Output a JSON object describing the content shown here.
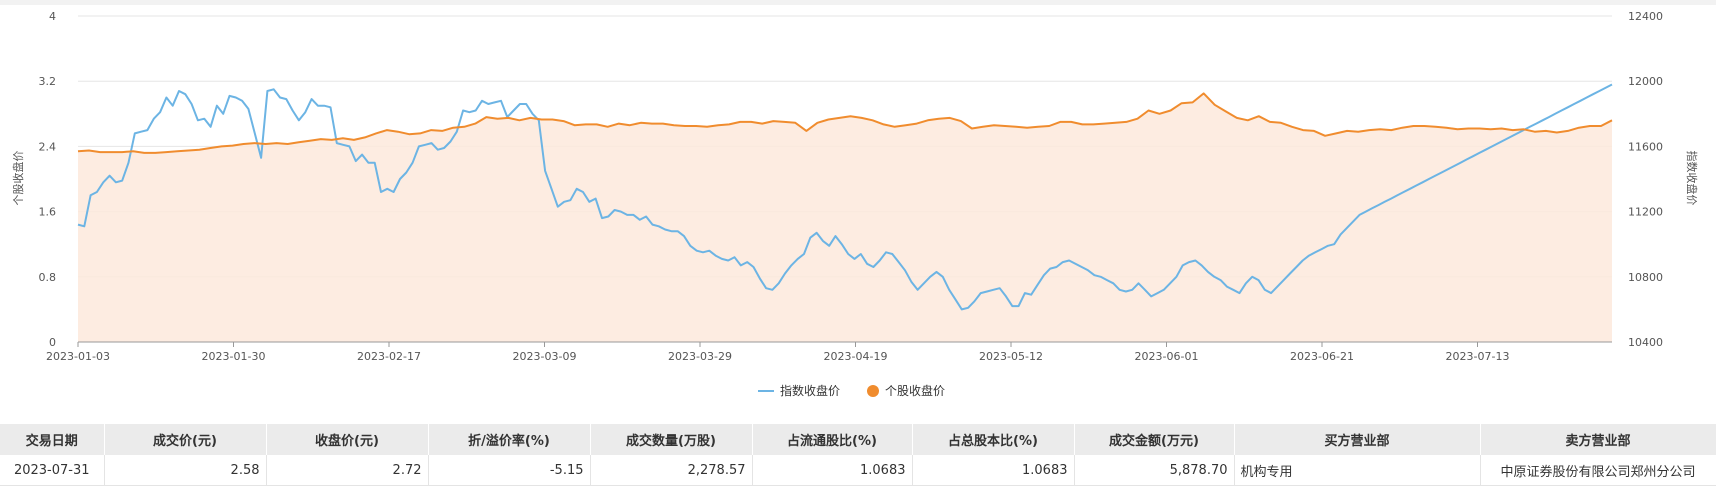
{
  "chart_data": {
    "type": "line",
    "legend_placement": "bottom-center",
    "grid": true,
    "x_ticks": [
      "2023-01-03",
      "2023-01-30",
      "2023-02-17",
      "2023-03-09",
      "2023-03-29",
      "2023-04-19",
      "2023-05-12",
      "2023-06-01",
      "2023-06-21",
      "2023-07-13"
    ],
    "y_left": {
      "label": "个股收盘价",
      "ticks": [
        "0",
        "0.8",
        "1.6",
        "2.4",
        "3.2",
        "4"
      ],
      "range": [
        0,
        4
      ]
    },
    "y_right": {
      "label": "指数收盘价",
      "ticks": [
        "10400",
        "10800",
        "11200",
        "11600",
        "12000",
        "12400"
      ],
      "range": [
        10400,
        12400
      ]
    },
    "series": [
      {
        "name": "指数收盘价",
        "axis": "right",
        "color": "#6cb4e4",
        "values": [
          11120,
          11110,
          11300,
          11320,
          11380,
          11420,
          11380,
          11390,
          11500,
          11680,
          11690,
          11700,
          11770,
          11810,
          11900,
          11850,
          11940,
          11920,
          11860,
          11760,
          11770,
          11720,
          11850,
          11800,
          11910,
          11900,
          11880,
          11830,
          11680,
          11530,
          11940,
          11950,
          11900,
          11890,
          11820,
          11760,
          11810,
          11890,
          11850,
          11850,
          11840,
          11620,
          11610,
          11600,
          11510,
          11550,
          11500,
          11500,
          11320,
          11340,
          11320,
          11400,
          11440,
          11500,
          11600,
          11610,
          11620,
          11580,
          11590,
          11630,
          11690,
          11820,
          11810,
          11820,
          11880,
          11860,
          11870,
          11880,
          11780,
          11820,
          11860,
          11860,
          11800,
          11760,
          11450,
          11340,
          11230,
          11260,
          11270,
          11340,
          11320,
          11260,
          11280,
          11160,
          11170,
          11210,
          11200,
          11180,
          11180,
          11150,
          11170,
          11120,
          11110,
          11090,
          11080,
          11080,
          11050,
          10990,
          10960,
          10950,
          10960,
          10930,
          10910,
          10900,
          10920,
          10870,
          10890,
          10860,
          10790,
          10730,
          10720,
          10760,
          10820,
          10870,
          10910,
          10940,
          11040,
          11070,
          11020,
          10990,
          11050,
          11000,
          10940,
          10910,
          10940,
          10880,
          10860,
          10900,
          10950,
          10940,
          10890,
          10840,
          10770,
          10720,
          10760,
          10800,
          10830,
          10800,
          10720,
          10660,
          10600,
          10610,
          10650,
          10700,
          10710,
          10720,
          10730,
          10680,
          10620,
          10620,
          10700,
          10690,
          10750,
          10810,
          10850,
          10860,
          10890,
          10900,
          10880,
          10860,
          10840,
          10810,
          10800,
          10780,
          10760,
          10720,
          10710,
          10720,
          10760,
          10720,
          10680,
          10700,
          10720,
          10760,
          10800,
          10870,
          10890,
          10900,
          10870,
          10830,
          10800,
          10780,
          10740,
          10720,
          10700,
          10760,
          10800,
          10780,
          10720,
          10700,
          10740,
          10780,
          10820,
          10860,
          10900,
          10930,
          10950,
          10970,
          10990,
          11000,
          11060,
          11100,
          11140,
          11180,
          11200,
          11220,
          11240,
          11260,
          11280,
          11300,
          11320,
          11340,
          11360,
          11380,
          11400,
          11420,
          11440,
          11460,
          11480,
          11500,
          11520,
          11540,
          11560,
          11580,
          11600,
          11620,
          11640,
          11660,
          11680,
          11700,
          11720,
          11740,
          11760,
          11780,
          11800,
          11820,
          11840,
          11860,
          11880,
          11900,
          11920,
          11940,
          11960,
          11980
        ]
      },
      {
        "name": "个股收盘价",
        "axis": "left",
        "color": "#f08c2e",
        "values": [
          2.34,
          2.35,
          2.33,
          2.33,
          2.33,
          2.34,
          2.32,
          2.32,
          2.33,
          2.34,
          2.35,
          2.36,
          2.38,
          2.4,
          2.41,
          2.43,
          2.44,
          2.43,
          2.44,
          2.43,
          2.45,
          2.47,
          2.49,
          2.48,
          2.5,
          2.48,
          2.51,
          2.56,
          2.6,
          2.58,
          2.55,
          2.56,
          2.6,
          2.59,
          2.63,
          2.64,
          2.68,
          2.76,
          2.74,
          2.75,
          2.72,
          2.75,
          2.73,
          2.73,
          2.71,
          2.66,
          2.67,
          2.67,
          2.64,
          2.68,
          2.66,
          2.69,
          2.68,
          2.68,
          2.66,
          2.65,
          2.65,
          2.64,
          2.66,
          2.67,
          2.7,
          2.7,
          2.68,
          2.71,
          2.7,
          2.69,
          2.59,
          2.69,
          2.73,
          2.75,
          2.77,
          2.75,
          2.72,
          2.67,
          2.64,
          2.66,
          2.68,
          2.72,
          2.74,
          2.75,
          2.71,
          2.62,
          2.64,
          2.66,
          2.65,
          2.64,
          2.63,
          2.64,
          2.65,
          2.7,
          2.7,
          2.67,
          2.67,
          2.68,
          2.69,
          2.7,
          2.74,
          2.84,
          2.8,
          2.84,
          2.93,
          2.94,
          3.05,
          2.91,
          2.83,
          2.75,
          2.72,
          2.77,
          2.7,
          2.69,
          2.64,
          2.6,
          2.59,
          2.53,
          2.56,
          2.59,
          2.58,
          2.6,
          2.61,
          2.6,
          2.63,
          2.65,
          2.65,
          2.64,
          2.63,
          2.61,
          2.62,
          2.62,
          2.61,
          2.62,
          2.6,
          2.61,
          2.58,
          2.59,
          2.57,
          2.59,
          2.63,
          2.65,
          2.65,
          2.72
        ]
      }
    ]
  },
  "table": {
    "headers": [
      "交易日期",
      "成交价(元)",
      "收盘价(元)",
      "折/溢价率(%)",
      "成交数量(万股)",
      "占流通股比(%)",
      "占总股本比(%)",
      "成交金额(万元)",
      "买方营业部",
      "卖方营业部"
    ],
    "rows": [
      [
        "2023-07-31",
        "2.58",
        "2.72",
        "-5.15",
        "2,278.57",
        "1.0683",
        "1.0683",
        "5,878.70",
        "机构专用",
        "中原证券股份有限公司郑州分公司"
      ]
    ]
  }
}
